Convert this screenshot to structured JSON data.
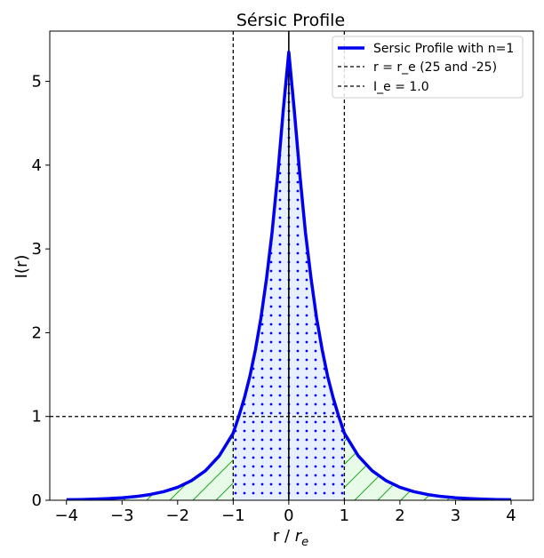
{
  "chart_data": {
    "type": "line",
    "title": "Sérsic Profile",
    "xlabel": "r / ",
    "xlabel_var": "r",
    "xlabel_sub": "e",
    "ylabel": "I(r)",
    "xlim": [
      -4.3,
      4.4
    ],
    "ylim": [
      0,
      5.6
    ],
    "xticks": [
      -4,
      -3,
      -2,
      -1,
      0,
      1,
      2,
      3,
      4
    ],
    "xtick_labels": [
      "−4",
      "−3",
      "−2",
      "−1",
      "0",
      "1",
      "2",
      "3",
      "4"
    ],
    "yticks": [
      0,
      1,
      2,
      3,
      4,
      5
    ],
    "ytick_labels": [
      "0",
      "1",
      "2",
      "3",
      "4",
      "5"
    ],
    "grid": false,
    "legend_position": "top-right",
    "series": [
      {
        "name": "Sersic Profile with n=1",
        "color": "#0000ee",
        "x": [
          -4,
          -3.75,
          -3.5,
          -3.25,
          -3,
          -2.75,
          -2.5,
          -2.25,
          -2,
          -1.75,
          -1.5,
          -1.25,
          -1,
          -0.9,
          -0.8,
          -0.7,
          -0.6,
          -0.5,
          -0.4,
          -0.3,
          -0.2,
          -0.1,
          0,
          0.1,
          0.2,
          0.3,
          0.4,
          0.5,
          0.6,
          0.7,
          0.8,
          0.9,
          1,
          1.25,
          1.5,
          1.75,
          2,
          2.25,
          2.5,
          2.75,
          3,
          3.25,
          3.5,
          3.75,
          4
        ],
        "y": [
          0.006,
          0.009,
          0.013,
          0.02,
          0.03,
          0.045,
          0.068,
          0.103,
          0.155,
          0.234,
          0.352,
          0.53,
          0.8,
          1.0,
          1.22,
          1.48,
          1.8,
          2.18,
          2.65,
          3.2,
          3.88,
          4.65,
          5.35,
          4.65,
          3.88,
          3.2,
          2.65,
          2.18,
          1.8,
          1.48,
          1.22,
          1.0,
          0.8,
          0.53,
          0.352,
          0.234,
          0.155,
          0.103,
          0.068,
          0.045,
          0.03,
          0.02,
          0.013,
          0.009,
          0.006
        ]
      }
    ],
    "reference_lines": [
      {
        "name": "r = r_e (25 and -25)",
        "orientation": "vertical",
        "values": [
          -1,
          1
        ],
        "style": "dashed",
        "color": "#000000"
      },
      {
        "name": "I_e = 1.0",
        "orientation": "horizontal",
        "values": [
          1
        ],
        "style": "dashed",
        "color": "#000000"
      }
    ],
    "center_line": {
      "x": 0,
      "color": "#000000"
    },
    "fills": [
      {
        "region": "inner",
        "x_range": [
          -1,
          1
        ],
        "face_color": "#e8f0ff",
        "hatch": "dots",
        "hatch_color": "#0000ee"
      },
      {
        "region": "outer",
        "x_range": [
          -4,
          4
        ],
        "face_color": "#e8fbe8",
        "hatch": "diagonal",
        "hatch_color": "#00aa00"
      }
    ]
  }
}
